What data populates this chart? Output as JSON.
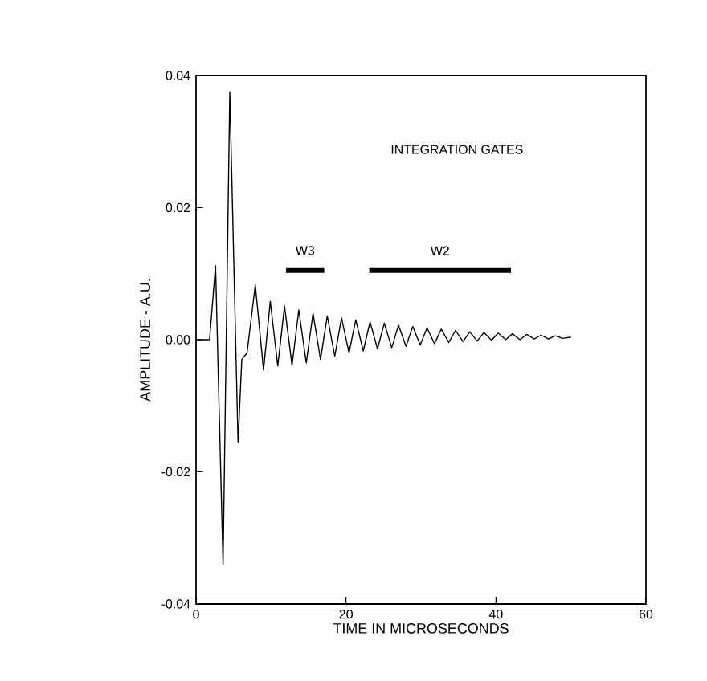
{
  "chart_data": {
    "type": "line",
    "xlabel": "TIME IN MICROSECONDS",
    "ylabel": "AMPLITUDE - A.U.",
    "annotations": [
      "INTEGRATION GATES"
    ],
    "xlim": [
      0,
      60
    ],
    "ylim": [
      -0.04,
      0.04
    ],
    "xticks": [
      0,
      20,
      40,
      60
    ],
    "yticks": [
      {
        "value": -0.04,
        "label": "-0.04"
      },
      {
        "value": -0.02,
        "label": "-0.02"
      },
      {
        "value": 0,
        "label": "0.00"
      },
      {
        "value": 0.02,
        "label": "0.02"
      },
      {
        "value": 0.04,
        "label": "0.04"
      }
    ],
    "grid": false,
    "legend": false,
    "series": [
      {
        "color": "#000000",
        "x": [
          0,
          1.8,
          2.6,
          3.6,
          4.5,
          5.6,
          6.1,
          6.8,
          7.9,
          9.0,
          9.9,
          10.9,
          11.8,
          12.8,
          13.7,
          14.7,
          15.6,
          16.6,
          17.5,
          18.5,
          19.4,
          20.4,
          21.3,
          22.3,
          23.2,
          24.2,
          25.1,
          26.1,
          27.0,
          28.0,
          28.9,
          29.9,
          30.8,
          31.8,
          32.7,
          33.7,
          34.6,
          35.6,
          36.5,
          37.5,
          38.4,
          39.4,
          40.3,
          41.3,
          42.2,
          43.2,
          44.1,
          45.1,
          46.0,
          47.0,
          47.9,
          48.9,
          50.0
        ],
        "values": [
          0,
          0,
          0.0112,
          -0.034,
          0.0375,
          -0.0156,
          -0.003,
          -0.002,
          0.0083,
          -0.0046,
          0.0058,
          -0.004,
          0.0051,
          -0.0039,
          0.0045,
          -0.0035,
          0.004,
          -0.003,
          0.0036,
          -0.0025,
          0.0033,
          -0.002,
          0.003,
          -0.0017,
          0.0027,
          -0.0014,
          0.0025,
          -0.0012,
          0.0022,
          -0.001,
          0.002,
          -0.0008,
          0.0018,
          -0.0006,
          0.0016,
          -0.0004,
          0.0014,
          -0.0003,
          0.0012,
          -0.0002,
          0.0011,
          -0.0001,
          0.001,
          0,
          0.0009,
          0,
          0.0008,
          0.0001,
          0.0007,
          0.0001,
          0.0006,
          0.0002,
          0.0004
        ]
      },
      {
        "name": "W3",
        "color": "#000000",
        "x": [
          12.0,
          17.1
        ],
        "values": [
          0.0105,
          0.0105
        ]
      },
      {
        "name": "W2",
        "color": "#000000",
        "x": [
          23.1,
          42.0
        ],
        "values": [
          0.0105,
          0.0105
        ]
      }
    ]
  }
}
